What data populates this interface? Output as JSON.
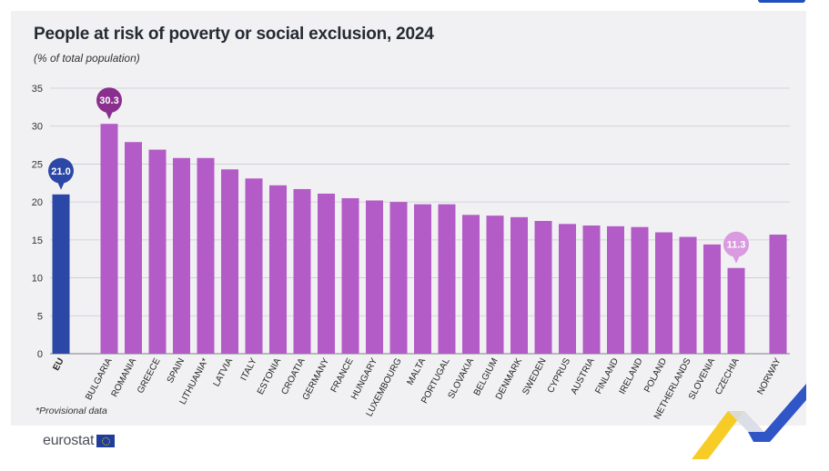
{
  "title": "People at risk of poverty or social exclusion, 2024",
  "subtitle": "(% of total population)",
  "footnote": "*Provisional data",
  "logo_text": "eurostat",
  "colors": {
    "eu_bar": "#2c48a6",
    "country_bar": "#b35bc6",
    "max_callout": "#8b2f8e",
    "min_callout": "#d99ae0",
    "eu_callout": "#2c48a6"
  },
  "chart_data": {
    "type": "bar",
    "title": "People at risk of poverty or social exclusion, 2024",
    "subtitle": "(% of total population)",
    "xlabel": "",
    "ylabel": "",
    "ylim": [
      0,
      35
    ],
    "yticks": [
      0,
      5,
      10,
      15,
      20,
      25,
      30,
      35
    ],
    "grid": true,
    "categories": [
      "EU",
      "BULGARIA",
      "ROMANIA",
      "GREECE",
      "SPAIN",
      "LITHUANIA*",
      "LATVIA",
      "ITALY",
      "ESTONIA",
      "CROATIA",
      "GERMANY",
      "FRANCE",
      "HUNGARY",
      "LUXEMBOURG",
      "MALTA",
      "PORTUGAL",
      "SLOVAKIA",
      "BELGIUM",
      "DENMARK",
      "SWEDEN",
      "CYPRUS",
      "AUSTRIA",
      "FINLAND",
      "IRELAND",
      "POLAND",
      "NETHERLANDS",
      "SLOVENIA",
      "CZECHIA",
      "NORWAY"
    ],
    "values": [
      21.0,
      30.3,
      27.9,
      26.9,
      25.8,
      25.8,
      24.3,
      23.1,
      22.2,
      21.7,
      21.1,
      20.5,
      20.2,
      20.0,
      19.7,
      19.7,
      18.3,
      18.2,
      18.0,
      17.5,
      17.1,
      16.9,
      16.8,
      16.7,
      16.0,
      15.4,
      14.4,
      11.3,
      15.7
    ],
    "groups": [
      "eu",
      "country",
      "country",
      "country",
      "country",
      "country",
      "country",
      "country",
      "country",
      "country",
      "country",
      "country",
      "country",
      "country",
      "country",
      "country",
      "country",
      "country",
      "country",
      "country",
      "country",
      "country",
      "country",
      "country",
      "country",
      "country",
      "country",
      "country",
      "other"
    ],
    "annotations": [
      {
        "category": "EU",
        "label": "21.0",
        "style": "eu"
      },
      {
        "category": "BULGARIA",
        "label": "30.3",
        "style": "max"
      },
      {
        "category": "CZECHIA",
        "label": "11.3",
        "style": "min"
      }
    ]
  }
}
